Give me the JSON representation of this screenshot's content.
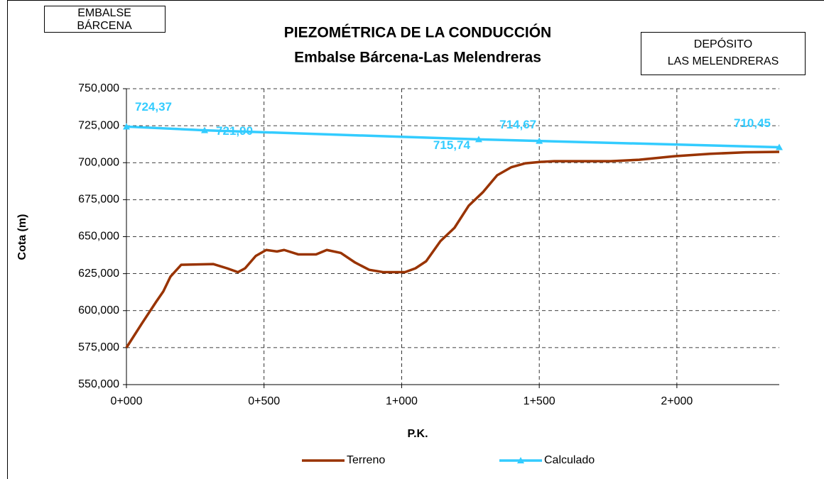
{
  "chart_data": {
    "type": "line",
    "title": [
      "PIEZOMÉTRICA DE LA CONDUCCIÓN",
      "Embalse Bárcena-Las Melendreras"
    ],
    "boxes": [
      [
        "EMBALSE",
        "BÁRCENA"
      ],
      [
        "DEPÓSITO",
        "LAS MELENDRERAS"
      ]
    ],
    "x_label": "P.K.",
    "y_label": "Cota (m)",
    "xlim": [
      0,
      2372
    ],
    "ylim": [
      550,
      750
    ],
    "xticks": [
      {
        "value": 0,
        "label": "0+000"
      },
      {
        "value": 500,
        "label": "0+500"
      },
      {
        "value": 1000,
        "label": "1+000"
      },
      {
        "value": 1500,
        "label": "1+500"
      },
      {
        "value": 2000,
        "label": "2+000"
      }
    ],
    "yticks": [
      {
        "value": 550,
        "label": "550,000"
      },
      {
        "value": 575,
        "label": "575,000"
      },
      {
        "value": 600,
        "label": "600,000"
      },
      {
        "value": 625,
        "label": "625,000"
      },
      {
        "value": 650,
        "label": "650,000"
      },
      {
        "value": 675,
        "label": "675,000"
      },
      {
        "value": 700,
        "label": "700,000"
      },
      {
        "value": 725,
        "label": "725,000"
      },
      {
        "value": 750,
        "label": "750,000"
      }
    ],
    "grid": true,
    "series": [
      {
        "name": "Terreno",
        "color": "#993300",
        "x": [
          0,
          57,
          108,
          134,
          160,
          199,
          315,
          366,
          405,
          431,
          470,
          508,
          547,
          573,
          625,
          689,
          728,
          779,
          831,
          882,
          934,
          1012,
          1050,
          1089,
          1141,
          1192,
          1244,
          1295,
          1347,
          1399,
          1450,
          1502,
          1554,
          1760,
          1863,
          1992,
          2121,
          2250,
          2372
        ],
        "values": [
          575,
          591.6,
          606,
          613,
          623,
          631,
          631.5,
          628.6,
          626,
          628.6,
          637,
          641,
          640,
          641,
          638,
          638,
          641,
          639,
          632.5,
          627.6,
          626,
          626,
          628.6,
          633.4,
          647,
          656,
          671,
          680,
          691.5,
          697,
          699.6,
          700.5,
          701,
          701,
          702,
          704.4,
          706,
          707,
          707.3
        ]
      },
      {
        "name": "Calculado",
        "color": "#33ccff",
        "marker": "triangle",
        "x": [
          0,
          284,
          1280,
          1500,
          2372
        ],
        "values": [
          724.37,
          721.9,
          715.74,
          714.67,
          710.45
        ],
        "value_labels": [
          "724,37",
          "721,90",
          "715,74",
          "714,67",
          "710,45"
        ]
      }
    ]
  }
}
